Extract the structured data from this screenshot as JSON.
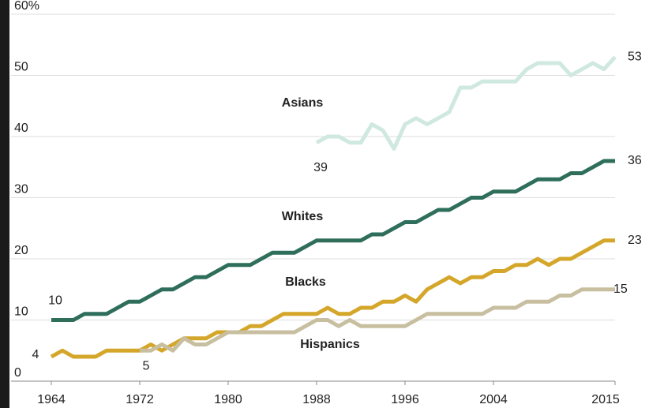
{
  "chart_data": {
    "type": "line",
    "x": [
      1964,
      1965,
      1966,
      1967,
      1968,
      1969,
      1970,
      1971,
      1972,
      1973,
      1974,
      1975,
      1976,
      1977,
      1978,
      1979,
      1980,
      1981,
      1982,
      1983,
      1984,
      1985,
      1986,
      1987,
      1988,
      1989,
      1990,
      1991,
      1992,
      1993,
      1994,
      1995,
      1996,
      1997,
      1998,
      1999,
      2000,
      2001,
      2002,
      2003,
      2004,
      2005,
      2006,
      2007,
      2008,
      2009,
      2010,
      2011,
      2012,
      2013,
      2014,
      2015
    ],
    "series": [
      {
        "name": "Whites",
        "color": "#2e6e5a",
        "values": [
          10,
          10,
          10,
          11,
          11,
          11,
          12,
          13,
          13,
          14,
          15,
          15,
          16,
          17,
          17,
          18,
          19,
          19,
          19,
          20,
          21,
          21,
          21,
          22,
          23,
          23,
          23,
          23,
          23,
          24,
          24,
          25,
          26,
          26,
          27,
          28,
          28,
          29,
          30,
          30,
          31,
          31,
          31,
          32,
          33,
          33,
          33,
          34,
          34,
          35,
          36,
          36
        ]
      },
      {
        "name": "Blacks",
        "color": "#d4a62a",
        "values": [
          4,
          5,
          4,
          4,
          4,
          5,
          5,
          5,
          5,
          6,
          5,
          6,
          7,
          7,
          7,
          8,
          8,
          8,
          9,
          9,
          10,
          11,
          11,
          11,
          11,
          12,
          11,
          11,
          12,
          12,
          13,
          13,
          14,
          13,
          15,
          16,
          17,
          16,
          17,
          17,
          18,
          18,
          19,
          19,
          20,
          19,
          20,
          20,
          21,
          22,
          23,
          23
        ]
      },
      {
        "name": "Hispanics",
        "color": "#c8bfa0",
        "values": [
          null,
          null,
          null,
          null,
          null,
          null,
          null,
          null,
          5,
          5,
          6,
          5,
          7,
          6,
          6,
          7,
          8,
          8,
          8,
          8,
          8,
          8,
          8,
          9,
          10,
          10,
          9,
          10,
          9,
          9,
          9,
          9,
          9,
          10,
          11,
          11,
          11,
          11,
          11,
          11,
          12,
          12,
          12,
          13,
          13,
          13,
          14,
          14,
          15,
          15,
          15,
          15
        ]
      },
      {
        "name": "Asians",
        "color": "#cfe8e0",
        "values": [
          null,
          null,
          null,
          null,
          null,
          null,
          null,
          null,
          null,
          null,
          null,
          null,
          null,
          null,
          null,
          null,
          null,
          null,
          null,
          null,
          null,
          null,
          null,
          null,
          39,
          40,
          40,
          39,
          39,
          42,
          41,
          38,
          42,
          43,
          42,
          43,
          44,
          48,
          48,
          49,
          49,
          49,
          49,
          51,
          52,
          52,
          52,
          50,
          51,
          52,
          51,
          53
        ]
      }
    ],
    "xlim": [
      1964,
      2015
    ],
    "xticks": [
      1964,
      1972,
      1980,
      1988,
      1996,
      2004,
      2015
    ],
    "ylim": [
      0,
      60
    ],
    "yticks": [
      0,
      10,
      20,
      30,
      40,
      50,
      {
        "value": 60,
        "label": "60%"
      }
    ],
    "grid": true
  }
}
